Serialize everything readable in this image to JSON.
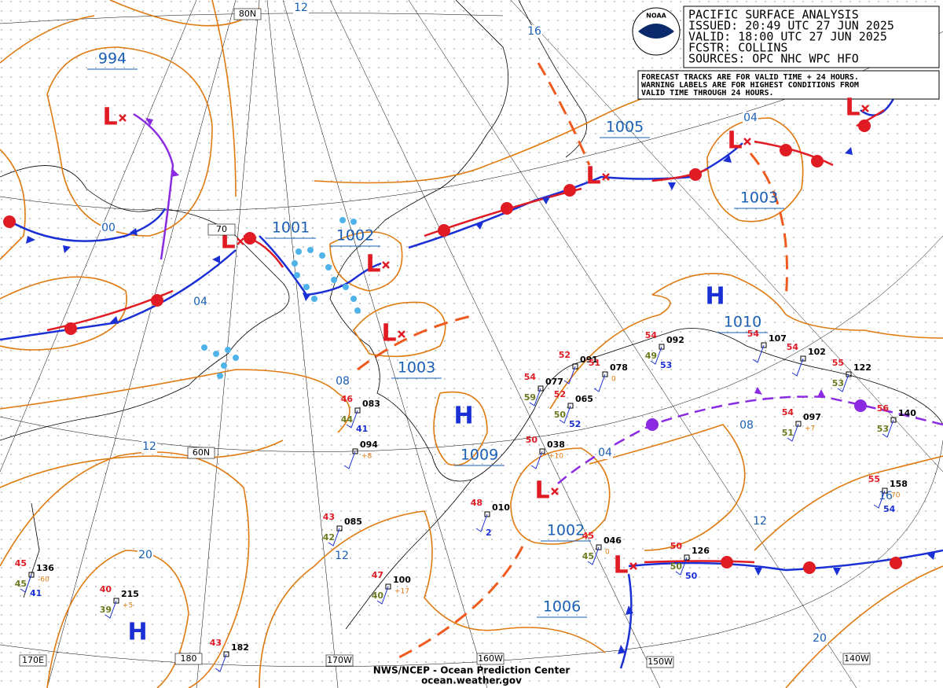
{
  "header": {
    "title": "PACIFIC SURFACE ANALYSIS",
    "issued": "ISSUED: 20:49 UTC 27 JUN 2025",
    "valid": "VALID:  18:00 UTC 27 JUN 2025",
    "forecaster": "FCSTR:  COLLINS",
    "sources": "SOURCES: OPC NHC WPC HFO"
  },
  "logo": "NOAA",
  "note": [
    "FORECAST TRACKS ARE FOR VALID TIME + 24 HOURS.",
    "WARNING LABELS ARE FOR HIGHEST CONDITIONS FROM",
    "VALID TIME THROUGH 24 HOURS."
  ],
  "symbols": {
    "low": "L",
    "high": "H"
  },
  "pressure_labels": [
    "994",
    "1001",
    "1002",
    "1005",
    "1003",
    "1003",
    "1009",
    "1010",
    "1002",
    "1006"
  ],
  "isobar_labels": [
    "12",
    "16",
    "00",
    "04",
    "08",
    "12",
    "20",
    "12",
    "04",
    "08",
    "12",
    "16",
    "20",
    "04"
  ],
  "grid_labels": [
    "80N",
    "70",
    "60N",
    "170E",
    "180",
    "170W",
    "160W",
    "150W",
    "140W"
  ],
  "stations": [
    {
      "id": "136",
      "temp": "45",
      "dew": "45",
      "other": "41",
      "change": "-60"
    },
    {
      "id": "215",
      "temp": "40",
      "dew": "39",
      "change": "+5"
    },
    {
      "id": "182",
      "temp": "43"
    },
    {
      "id": "100",
      "temp": "47",
      "dew": "40",
      "change": "+17"
    },
    {
      "id": "085",
      "temp": "43",
      "dew": "42"
    },
    {
      "id": "010",
      "temp": "48",
      "other": "2"
    },
    {
      "id": "094",
      "change": "+8"
    },
    {
      "id": "083",
      "temp": "46",
      "dew": "44",
      "other": "41"
    },
    {
      "id": "077",
      "temp": "54",
      "dew": "59"
    },
    {
      "id": "091",
      "temp": "52"
    },
    {
      "id": "078",
      "temp": "51",
      "change": "0"
    },
    {
      "id": "065",
      "temp": "52",
      "dew": "50",
      "other": "52"
    },
    {
      "id": "038",
      "temp": "50",
      "change": "+10"
    },
    {
      "id": "092",
      "temp": "54",
      "dew": "49",
      "other": "53"
    },
    {
      "id": "107",
      "temp": "54"
    },
    {
      "id": "102",
      "temp": "54"
    },
    {
      "id": "122",
      "temp": "55",
      "dew": "53"
    },
    {
      "id": "140",
      "temp": "56",
      "dew": "53"
    },
    {
      "id": "097",
      "temp": "54",
      "dew": "51",
      "change": "+7"
    },
    {
      "id": "158",
      "temp": "55",
      "other": "54",
      "change": "70"
    },
    {
      "id": "046",
      "temp": "45",
      "dew": "45",
      "change": "0"
    },
    {
      "id": "126",
      "temp": "50",
      "dew": "50",
      "other": "50"
    }
  ],
  "footer": [
    "NWS/NCEP - Ocean Prediction Center",
    "ocean.weather.gov"
  ]
}
